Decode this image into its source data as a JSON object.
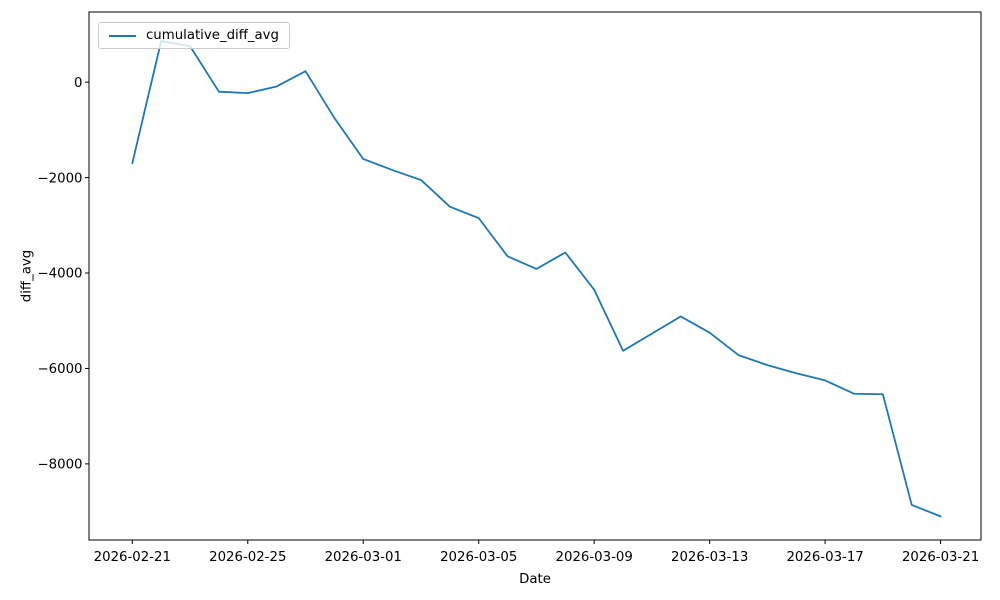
{
  "chart_data": {
    "type": "line",
    "title": "",
    "xlabel": "Date",
    "ylabel": "diff_avg",
    "grid": false,
    "legend_position": "upper left",
    "line_color": "#1f77b4",
    "x": [
      "2026-02-21",
      "2026-02-22",
      "2026-02-23",
      "2026-02-24",
      "2026-02-25",
      "2026-02-26",
      "2026-02-27",
      "2026-02-28",
      "2026-03-01",
      "2026-03-02",
      "2026-03-03",
      "2026-03-04",
      "2026-03-05",
      "2026-03-06",
      "2026-03-07",
      "2026-03-08",
      "2026-03-09",
      "2026-03-10",
      "2026-03-11",
      "2026-03-12",
      "2026-03-13",
      "2026-03-14",
      "2026-03-15",
      "2026-03-16",
      "2026-03-17",
      "2026-03-18",
      "2026-03-19",
      "2026-03-20",
      "2026-03-21"
    ],
    "series": [
      {
        "name": "cumulative_diff_avg",
        "values": [
          -1700,
          860,
          755,
          -200,
          -230,
          -90,
          230,
          -750,
          -1610,
          -1840,
          -2050,
          -2610,
          -2850,
          -3650,
          -3915,
          -3570,
          -4350,
          -5630,
          -5270,
          -4910,
          -5250,
          -5720,
          -5930,
          -6100,
          -6250,
          -6530,
          -6540,
          -8860,
          -9100
        ]
      }
    ],
    "x_ticks": [
      {
        "label": "2026-02-21",
        "index": 0
      },
      {
        "label": "2026-02-25",
        "index": 4
      },
      {
        "label": "2026-03-01",
        "index": 8
      },
      {
        "label": "2026-03-05",
        "index": 12
      },
      {
        "label": "2026-03-09",
        "index": 16
      },
      {
        "label": "2026-03-13",
        "index": 20
      },
      {
        "label": "2026-03-17",
        "index": 24
      },
      {
        "label": "2026-03-21",
        "index": 28
      }
    ],
    "y_ticks": [
      {
        "label": "0",
        "value": 0
      },
      {
        "label": "−2000",
        "value": -2000
      },
      {
        "label": "−4000",
        "value": -4000
      },
      {
        "label": "−6000",
        "value": -6000
      },
      {
        "label": "−8000",
        "value": -8000
      }
    ],
    "xlim_index": [
      -1.5,
      29.4
    ],
    "ylim": [
      -9595,
      1470
    ]
  }
}
